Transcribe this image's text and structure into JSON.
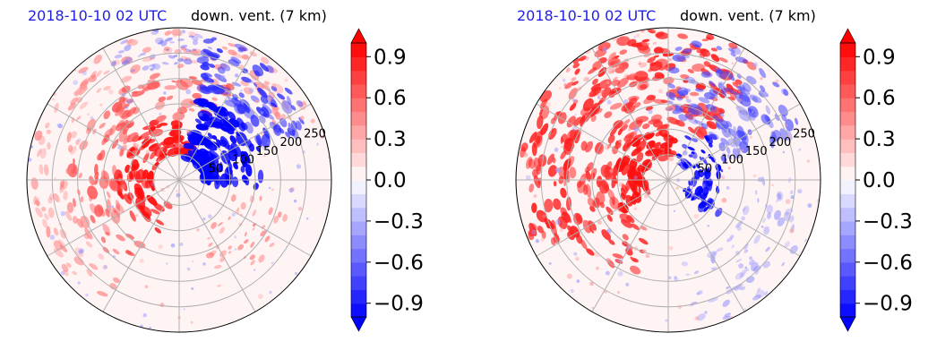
{
  "chart_data": [
    {
      "type": "heatmap",
      "projection": "polar",
      "time_label": "2018-10-10 02 UTC",
      "title": "down. vent. (7 km)",
      "radial_ticks": [
        "50",
        "100",
        "150",
        "200",
        "250"
      ],
      "radial_values": [
        50,
        100,
        150,
        200,
        250
      ],
      "rmax": 300,
      "grid": true,
      "colorbar": {
        "ticks": [
          "0.9",
          "0.6",
          "0.3",
          "0.0",
          "−0.3",
          "−0.6",
          "−0.9"
        ],
        "values": [
          0.9,
          0.6,
          0.3,
          0.0,
          -0.3,
          -0.6,
          -0.9
        ],
        "range": [
          -1.0,
          1.0
        ],
        "extend": "both",
        "cmap": "bwr",
        "low_color": "#0000ff",
        "mid_color": "#ffffff",
        "high_color": "#ff0000"
      }
    },
    {
      "type": "heatmap",
      "projection": "polar",
      "time_label": "2018-10-10 02 UTC",
      "title": "down. vent. (7 km)",
      "radial_ticks": [
        "50",
        "100",
        "150",
        "200",
        "250"
      ],
      "radial_values": [
        50,
        100,
        150,
        200,
        250
      ],
      "rmax": 300,
      "grid": true,
      "colorbar": {
        "ticks": [
          "0.9",
          "0.6",
          "0.3",
          "0.0",
          "−0.3",
          "−0.6",
          "−0.9"
        ],
        "values": [
          0.9,
          0.6,
          0.3,
          0.0,
          -0.3,
          -0.6,
          -0.9
        ],
        "range": [
          -1.0,
          1.0
        ],
        "extend": "both",
        "cmap": "bwr",
        "low_color": "#0000ff",
        "mid_color": "#ffffff",
        "high_color": "#ff0000"
      }
    }
  ]
}
